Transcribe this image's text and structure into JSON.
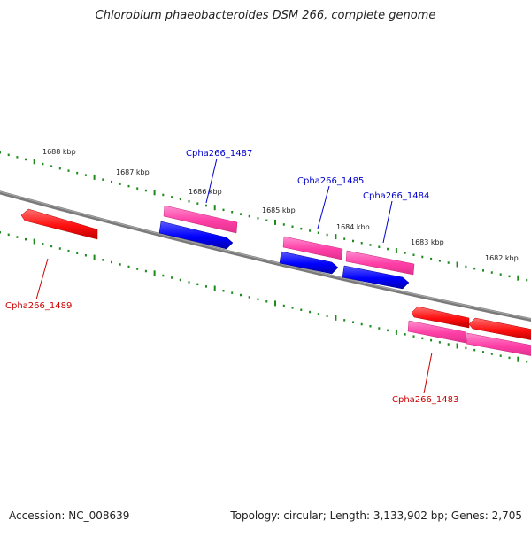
{
  "title": "Chlorobium phaeobacteroides DSM 266, complete genome",
  "footer": {
    "accession_label": "Accession:",
    "accession": "NC_008639",
    "topology_label": "Topology:",
    "topology": "circular",
    "length_label": "Length:",
    "length": "3,133,902 bp",
    "genes_label": "Genes:",
    "genes": "2,705"
  },
  "scale_labels": [
    "1688 kbp",
    "1687 kbp",
    "1686 kbp",
    "1685 kbp",
    "1684 kbp",
    "1683 kbp",
    "1682 kbp"
  ],
  "gene_labels": {
    "g1487": "Cpha266_1487",
    "g1485": "Cpha266_1485",
    "g1484": "Cpha266_1484",
    "g1489": "Cpha266_1489",
    "g1483": "Cpha266_1483"
  },
  "colors": {
    "backbone": "#7a7a7a",
    "tick": "#1e8a1e",
    "forward_gene": "#ff2020",
    "gene_box": "#ff4fb0",
    "reverse_gene": "#1010ff",
    "label_blue": "#0000cc",
    "label_red": "#cc0000"
  }
}
